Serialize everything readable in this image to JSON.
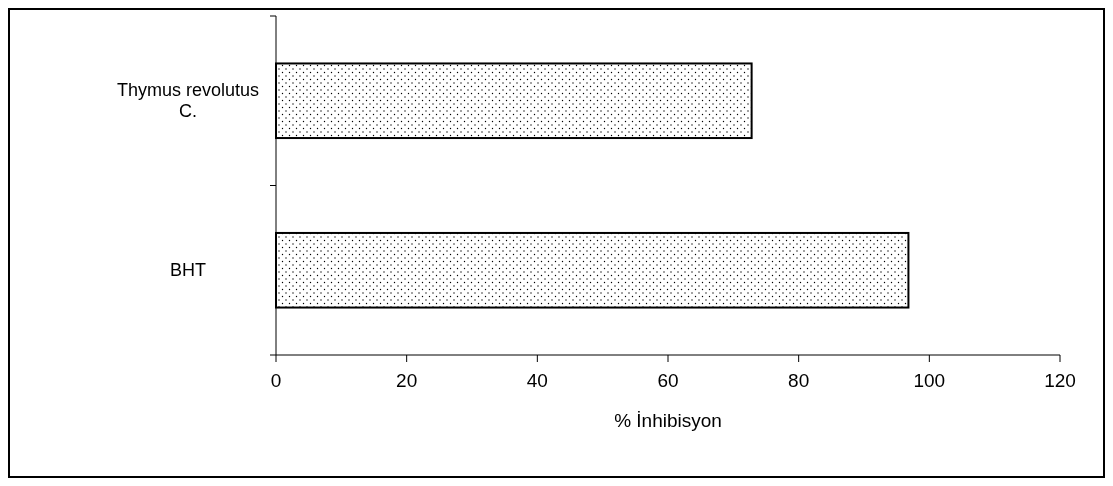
{
  "chart_data": {
    "type": "bar",
    "orientation": "horizontal",
    "categories": [
      "Thymus revolutus C.",
      "BHT"
    ],
    "values": [
      72.8,
      96.8
    ],
    "color": "#000000",
    "xlim": [
      0,
      120
    ],
    "xticks": [
      0,
      20,
      40,
      60,
      80,
      100,
      120
    ],
    "xlabel": "% İnhibisyon",
    "grid": false
  }
}
